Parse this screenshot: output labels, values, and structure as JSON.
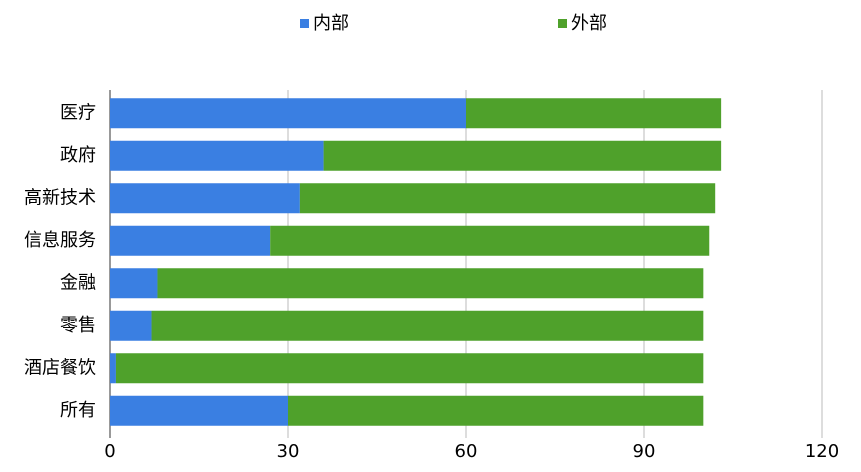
{
  "chart_data": {
    "type": "stacked-hbar",
    "categories": [
      "医疗",
      "政府",
      "高新技术",
      "信息服务",
      "金融",
      "零售",
      "酒店餐饮",
      "所有"
    ],
    "series": [
      {
        "name": "内部",
        "color": "#3a7fe2",
        "values": [
          60,
          36,
          32,
          27,
          8,
          7,
          1,
          30
        ]
      },
      {
        "name": "外部",
        "color": "#4fa12b",
        "values": [
          43,
          67,
          70,
          74,
          92,
          93,
          99,
          70
        ]
      }
    ],
    "xlim": [
      0,
      120
    ],
    "xticks": [
      0,
      30,
      60,
      90,
      120
    ],
    "grid": true,
    "legend": "top"
  }
}
